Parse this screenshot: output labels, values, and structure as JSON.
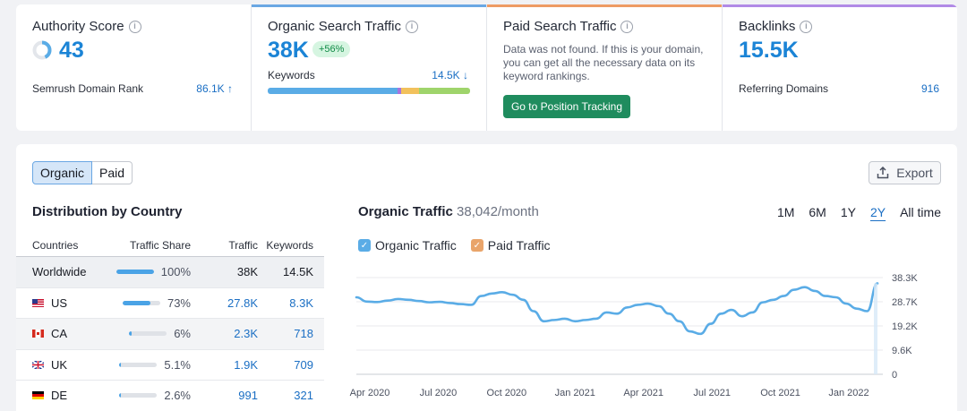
{
  "cards": {
    "authority": {
      "title": "Authority Score",
      "value": "43",
      "row_label": "Semrush Domain Rank",
      "row_value": "86.1K ↑"
    },
    "organic": {
      "title": "Organic Search Traffic",
      "value": "38K",
      "badge": "+56%",
      "row_label": "Keywords",
      "row_value": "14.5K ↓"
    },
    "paid": {
      "title": "Paid Search Traffic",
      "message": "Data was not found. If this is your domain, you can get all the necessary data on its keyword rankings.",
      "button": "Go to Position Tracking"
    },
    "backlinks": {
      "title": "Backlinks",
      "value": "15.5K",
      "row_label": "Referring Domains",
      "row_value": "916"
    }
  },
  "toggle": {
    "organic": "Organic",
    "paid": "Paid"
  },
  "export_label": "Export",
  "distribution": {
    "title": "Distribution by Country",
    "headers": {
      "countries": "Countries",
      "share": "Traffic Share",
      "traffic": "Traffic",
      "keywords": "Keywords"
    },
    "rows": [
      {
        "country": "Worldwide",
        "share": "100%",
        "traffic": "38K",
        "keywords": "14.5K"
      },
      {
        "country": "US",
        "share": "73%",
        "traffic": "27.8K",
        "keywords": "8.3K"
      },
      {
        "country": "CA",
        "share": "6%",
        "traffic": "2.3K",
        "keywords": "718"
      },
      {
        "country": "UK",
        "share": "5.1%",
        "traffic": "1.9K",
        "keywords": "709"
      },
      {
        "country": "DE",
        "share": "2.6%",
        "traffic": "991",
        "keywords": "321"
      }
    ]
  },
  "chart": {
    "title": "Organic Traffic",
    "subtitle": "38,042/month",
    "ranges": [
      "1M",
      "6M",
      "1Y",
      "2Y",
      "All time"
    ],
    "selected_range": "2Y",
    "legend": {
      "organic": "Organic Traffic",
      "paid": "Paid Traffic"
    }
  },
  "colors": {
    "accent": "#1b84d6",
    "organic_line": "#5aace6",
    "paid": "#e9a46a",
    "green_btn": "#1f8c5e"
  },
  "chart_data": {
    "type": "line",
    "title": "Organic Traffic 38,042/month",
    "x_ticks": [
      "Apr 2020",
      "Jul 2020",
      "Oct 2020",
      "Jan 2021",
      "Apr 2021",
      "Jul 2021",
      "Oct 2021",
      "Jan 2022"
    ],
    "y_ticks": [
      "0",
      "9.6K",
      "19.2K",
      "28.7K",
      "38.3K"
    ],
    "ylim": [
      0,
      38300
    ],
    "series": [
      {
        "name": "Organic Traffic",
        "x": [
          0,
          1,
          2,
          3,
          4,
          5,
          6,
          7,
          8,
          9,
          10,
          11,
          12,
          13,
          14,
          15,
          16,
          17,
          18,
          19,
          20,
          21,
          22,
          23,
          24,
          25,
          26,
          27,
          28,
          29,
          30,
          31,
          32,
          33,
          34,
          35,
          36,
          37,
          38,
          39,
          40,
          41,
          42,
          43,
          44,
          45,
          46,
          47,
          48,
          49,
          50
        ],
        "values": [
          30500,
          28800,
          28600,
          29200,
          29800,
          29500,
          29000,
          28500,
          28700,
          28200,
          27800,
          27500,
          31000,
          32000,
          32500,
          31500,
          29500,
          25000,
          21000,
          21500,
          22000,
          21000,
          21500,
          22000,
          24500,
          24000,
          26500,
          27500,
          28000,
          27000,
          24000,
          21000,
          17000,
          16000,
          20000,
          24000,
          25500,
          23000,
          24500,
          28500,
          29500,
          31000,
          33500,
          34500,
          33000,
          31000,
          30500,
          28000,
          26000,
          25000,
          36000
        ]
      },
      {
        "name": "Paid Traffic",
        "values": []
      }
    ]
  }
}
